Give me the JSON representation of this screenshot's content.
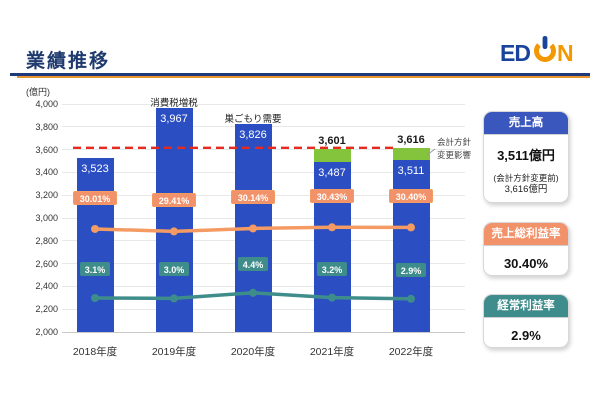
{
  "page": {
    "title": "業績推移"
  },
  "logo": {
    "company": "EDION",
    "part_ed": "ED",
    "part_n": "N",
    "blue": "#1A449C",
    "orange": "#F39800"
  },
  "chart_data": {
    "type": "bar",
    "subtype": "bar-line-combo",
    "title": "業績推移",
    "unit_label": "(億円)",
    "categories": [
      "2018年度",
      "2019年度",
      "2020年度",
      "2021年度",
      "2022年度"
    ],
    "y_axis": {
      "min": 2000,
      "max": 4000,
      "step": 200
    },
    "series": [
      {
        "name": "売上高",
        "type": "bar",
        "color": "#2B4FC2",
        "values": [
          3523,
          3967,
          3826,
          3487,
          3511
        ]
      },
      {
        "name": "会計方針変更前売上高(積上げ)",
        "type": "bar-stack-top",
        "color": "#84C43C",
        "totals": [
          null,
          null,
          null,
          3601,
          3616
        ]
      },
      {
        "name": "売上総利益率",
        "type": "line",
        "color": "#F49B63",
        "label_bg": "#F2926B",
        "decimals": 2,
        "values": [
          30.01,
          29.41,
          30.14,
          30.43,
          30.4
        ]
      },
      {
        "name": "経常利益率",
        "type": "line",
        "color": "#3F8D8B",
        "label_bg": "#3F8D8B",
        "decimals": 1,
        "values": [
          3.1,
          3.0,
          4.4,
          3.2,
          2.9
        ]
      }
    ],
    "reference_line": {
      "value": 3616,
      "color": "#E8291F",
      "style": "dashed"
    },
    "annotations": [
      {
        "text": "消費税増税",
        "category_index": 1
      },
      {
        "text": "巣ごもり需要",
        "category_index": 2
      },
      {
        "text_lines": [
          "会計方針",
          "変更影響"
        ],
        "category_index": 4
      }
    ],
    "legend_position": "none",
    "grid": true
  },
  "panels": [
    {
      "title": "売上高",
      "header_color": "#3A57BE",
      "value": "3,511億円",
      "note_line1": "(会計方針変更前)",
      "note_line2": "3,616億円"
    },
    {
      "title": "売上総利益率",
      "header_color": "#F2926B",
      "value": "30.40%"
    },
    {
      "title": "経常利益率",
      "header_color": "#3E8C8C",
      "value": "2.9%"
    }
  ]
}
